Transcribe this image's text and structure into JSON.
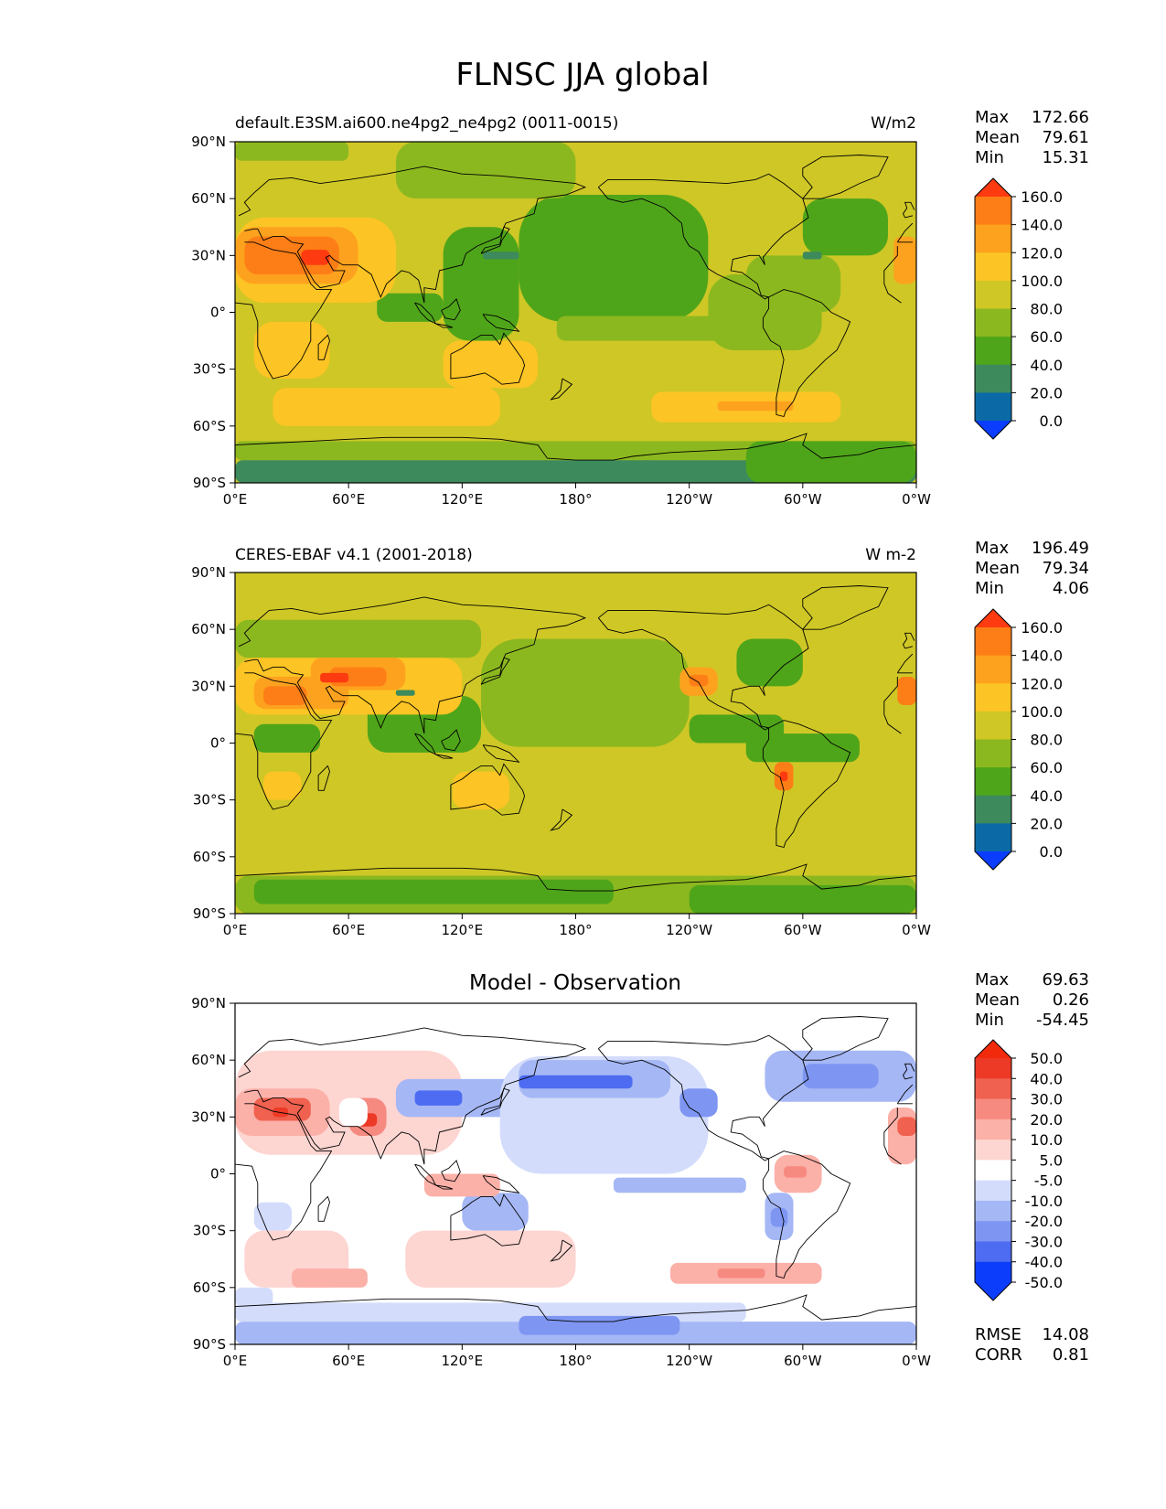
{
  "figure_title": "FLNSC JJA global",
  "x_ticks": [
    "0°E",
    "60°E",
    "120°E",
    "180°",
    "120°W",
    "60°W",
    "0°W"
  ],
  "y_ticks": [
    "90°N",
    "60°N",
    "30°N",
    "0°",
    "30°S",
    "60°S",
    "90°S"
  ],
  "colors": {
    "flux_levels": [
      "#0b3dff",
      "#0b6aa6",
      "#3d8a5c",
      "#4fa51a",
      "#8cb81f",
      "#cfc726",
      "#fcc424",
      "#fda21e",
      "#fd7e16",
      "#fd3a10"
    ],
    "diff_levels": [
      "#0c3dfa",
      "#4d6cf1",
      "#7e96f2",
      "#a5b7f5",
      "#d3dcfb",
      "#ffffff",
      "#fdd5d1",
      "#fbb0a8",
      "#f68a80",
      "#f0614f",
      "#ed3a26",
      "#f12a0c"
    ],
    "land_outline": "#000000"
  },
  "chart_data": [
    {
      "type": "heatmap",
      "title": "default.E3SM.ai600.ne4pg2_ne4pg2 (0011-0015)",
      "units": "W/m2",
      "stats": {
        "max_label": "Max",
        "max": "172.66",
        "mean_label": "Mean",
        "mean": "79.61",
        "min_label": "Min",
        "min": "15.31"
      },
      "colorbar_ticks": [
        "160.0",
        "140.0",
        "120.0",
        "100.0",
        "80.0",
        "60.0",
        "40.0",
        "20.0",
        "0.0"
      ],
      "x_range": [
        0,
        360
      ],
      "y_range": [
        -90,
        90
      ],
      "background_level": 5,
      "regions": [
        {
          "lon": [
            0,
            360
          ],
          "lat": [
            -90,
            -78
          ],
          "level": 2
        },
        {
          "lon": [
            0,
            360
          ],
          "lat": [
            -78,
            -68
          ],
          "level": 4
        },
        {
          "lon": [
            270,
            360
          ],
          "lat": [
            -90,
            -68
          ],
          "level": 3
        },
        {
          "lon": [
            150,
            250
          ],
          "lat": [
            -5,
            62
          ],
          "level": 3
        },
        {
          "lon": [
            110,
            150
          ],
          "lat": [
            -15,
            45
          ],
          "level": 3
        },
        {
          "lon": [
            300,
            345
          ],
          "lat": [
            30,
            60
          ],
          "level": 3
        },
        {
          "lon": [
            75,
            110
          ],
          "lat": [
            -5,
            10
          ],
          "level": 3
        },
        {
          "lon": [
            85,
            180
          ],
          "lat": [
            60,
            90
          ],
          "level": 4
        },
        {
          "lon": [
            0,
            60
          ],
          "lat": [
            80,
            90
          ],
          "level": 4
        },
        {
          "lon": [
            170,
            270
          ],
          "lat": [
            -15,
            -2
          ],
          "level": 4
        },
        {
          "lon": [
            250,
            310
          ],
          "lat": [
            -20,
            20
          ],
          "level": 4
        },
        {
          "lon": [
            270,
            320
          ],
          "lat": [
            0,
            30
          ],
          "level": 4
        },
        {
          "lon": [
            0,
            85
          ],
          "lat": [
            5,
            50
          ],
          "level": 6
        },
        {
          "lon": [
            10,
            50
          ],
          "lat": [
            -35,
            -5
          ],
          "level": 6
        },
        {
          "lon": [
            110,
            160
          ],
          "lat": [
            -40,
            -15
          ],
          "level": 6
        },
        {
          "lon": [
            20,
            140
          ],
          "lat": [
            -60,
            -40
          ],
          "level": 6
        },
        {
          "lon": [
            220,
            320
          ],
          "lat": [
            -58,
            -42
          ],
          "level": 6
        },
        {
          "lon": [
            0,
            65
          ],
          "lat": [
            15,
            45
          ],
          "level": 7
        },
        {
          "lon": [
            5,
            55
          ],
          "lat": [
            20,
            40
          ],
          "level": 8
        },
        {
          "lon": [
            35,
            50
          ],
          "lat": [
            25,
            33
          ],
          "level": 9
        },
        {
          "lon": [
            255,
            295
          ],
          "lat": [
            -52,
            -47
          ],
          "level": 7
        },
        {
          "lon": [
            348,
            360
          ],
          "lat": [
            15,
            40
          ],
          "level": 7
        },
        {
          "lon": [
            131,
            150
          ],
          "lat": [
            28,
            32
          ],
          "level": 2
        },
        {
          "lon": [
            300,
            310
          ],
          "lat": [
            28,
            32
          ],
          "level": 2
        }
      ]
    },
    {
      "type": "heatmap",
      "title": "CERES-EBAF v4.1 (2001-2018)",
      "units": "W m-2",
      "stats": {
        "max_label": "Max",
        "max": "196.49",
        "mean_label": "Mean",
        "mean": "79.34",
        "min_label": "Min",
        "min": "4.06"
      },
      "colorbar_ticks": [
        "160.0",
        "140.0",
        "120.0",
        "100.0",
        "80.0",
        "60.0",
        "40.0",
        "20.0",
        "0.0"
      ],
      "x_range": [
        0,
        360
      ],
      "y_range": [
        -90,
        90
      ],
      "background_level": 5,
      "regions": [
        {
          "lon": [
            0,
            360
          ],
          "lat": [
            -90,
            -70
          ],
          "level": 4
        },
        {
          "lon": [
            10,
            200
          ],
          "lat": [
            -85,
            -72
          ],
          "level": 3
        },
        {
          "lon": [
            240,
            360
          ],
          "lat": [
            -90,
            -75
          ],
          "level": 3
        },
        {
          "lon": [
            130,
            240
          ],
          "lat": [
            -2,
            55
          ],
          "level": 4
        },
        {
          "lon": [
            240,
            290
          ],
          "lat": [
            0,
            15
          ],
          "level": 3
        },
        {
          "lon": [
            70,
            130
          ],
          "lat": [
            -5,
            25
          ],
          "level": 3
        },
        {
          "lon": [
            10,
            45
          ],
          "lat": [
            -5,
            10
          ],
          "level": 3
        },
        {
          "lon": [
            270,
            330
          ],
          "lat": [
            -10,
            5
          ],
          "level": 3
        },
        {
          "lon": [
            265,
            300
          ],
          "lat": [
            30,
            55
          ],
          "level": 3
        },
        {
          "lon": [
            0,
            130
          ],
          "lat": [
            45,
            65
          ],
          "level": 4
        },
        {
          "lon": [
            0,
            120
          ],
          "lat": [
            15,
            45
          ],
          "level": 6
        },
        {
          "lon": [
            10,
            60
          ],
          "lat": [
            18,
            35
          ],
          "level": 7
        },
        {
          "lon": [
            40,
            90
          ],
          "lat": [
            28,
            45
          ],
          "level": 7
        },
        {
          "lon": [
            50,
            80
          ],
          "lat": [
            30,
            40
          ],
          "level": 8
        },
        {
          "lon": [
            45,
            60
          ],
          "lat": [
            32,
            37
          ],
          "level": 9
        },
        {
          "lon": [
            15,
            38
          ],
          "lat": [
            20,
            30
          ],
          "level": 8
        },
        {
          "lon": [
            15,
            35
          ],
          "lat": [
            -30,
            -15
          ],
          "level": 6
        },
        {
          "lon": [
            115,
            145
          ],
          "lat": [
            -35,
            -15
          ],
          "level": 6
        },
        {
          "lon": [
            235,
            255
          ],
          "lat": [
            25,
            40
          ],
          "level": 7
        },
        {
          "lon": [
            240,
            250
          ],
          "lat": [
            30,
            36
          ],
          "level": 8
        },
        {
          "lon": [
            285,
            295
          ],
          "lat": [
            -25,
            -10
          ],
          "level": 8
        },
        {
          "lon": [
            288,
            292
          ],
          "lat": [
            -20,
            -15
          ],
          "level": 9
        },
        {
          "lon": [
            350,
            360
          ],
          "lat": [
            20,
            35
          ],
          "level": 8
        },
        {
          "lon": [
            85,
            95
          ],
          "lat": [
            25,
            28
          ],
          "level": 2
        }
      ]
    },
    {
      "type": "heatmap",
      "title": "Model - Observation",
      "units": "",
      "stats": {
        "max_label": "Max",
        "max": "69.63",
        "mean_label": "Mean",
        "mean": "0.26",
        "min_label": "Min",
        "min": "-54.45"
      },
      "colorbar_ticks": [
        "50.0",
        "40.0",
        "30.0",
        "20.0",
        "10.0",
        "5.0",
        "-5.0",
        "-10.0",
        "-20.0",
        "-30.0",
        "-40.0",
        "-50.0"
      ],
      "extra_stats": {
        "rmse_label": "RMSE",
        "rmse": "14.08",
        "corr_label": "CORR",
        "corr": "0.81"
      },
      "x_range": [
        0,
        360
      ],
      "y_range": [
        -90,
        90
      ],
      "background_level": 5,
      "regions": [
        {
          "lon": [
            0,
            360
          ],
          "lat": [
            -90,
            -78
          ],
          "level": 3
        },
        {
          "lon": [
            0,
            270
          ],
          "lat": [
            -78,
            -68
          ],
          "level": 4
        },
        {
          "lon": [
            150,
            235
          ],
          "lat": [
            -85,
            -75
          ],
          "level": 2
        },
        {
          "lon": [
            0,
            120
          ],
          "lat": [
            10,
            65
          ],
          "level": 6
        },
        {
          "lon": [
            0,
            50
          ],
          "lat": [
            20,
            45
          ],
          "level": 7
        },
        {
          "lon": [
            10,
            40
          ],
          "lat": [
            28,
            40
          ],
          "level": 9
        },
        {
          "lon": [
            20,
            28
          ],
          "lat": [
            30,
            35
          ],
          "level": 10
        },
        {
          "lon": [
            60,
            80
          ],
          "lat": [
            20,
            40
          ],
          "level": 8
        },
        {
          "lon": [
            65,
            75
          ],
          "lat": [
            25,
            32
          ],
          "level": 10
        },
        {
          "lon": [
            55,
            70
          ],
          "lat": [
            25,
            40
          ],
          "level": 5
        },
        {
          "lon": [
            85,
            150
          ],
          "lat": [
            30,
            50
          ],
          "level": 3
        },
        {
          "lon": [
            95,
            120
          ],
          "lat": [
            36,
            44
          ],
          "level": 1
        },
        {
          "lon": [
            140,
            250
          ],
          "lat": [
            0,
            62
          ],
          "level": 4
        },
        {
          "lon": [
            150,
            230
          ],
          "lat": [
            40,
            60
          ],
          "level": 3
        },
        {
          "lon": [
            150,
            210
          ],
          "lat": [
            45,
            52
          ],
          "level": 1
        },
        {
          "lon": [
            235,
            255
          ],
          "lat": [
            30,
            45
          ],
          "level": 2
        },
        {
          "lon": [
            280,
            360
          ],
          "lat": [
            38,
            65
          ],
          "level": 3
        },
        {
          "lon": [
            300,
            340
          ],
          "lat": [
            45,
            58
          ],
          "level": 2
        },
        {
          "lon": [
            285,
            310
          ],
          "lat": [
            -10,
            10
          ],
          "level": 7
        },
        {
          "lon": [
            290,
            302
          ],
          "lat": [
            -2,
            4
          ],
          "level": 8
        },
        {
          "lon": [
            280,
            295
          ],
          "lat": [
            -35,
            -10
          ],
          "level": 3
        },
        {
          "lon": [
            283,
            292
          ],
          "lat": [
            -28,
            -18
          ],
          "level": 2
        },
        {
          "lon": [
            120,
            155
          ],
          "lat": [
            -30,
            -10
          ],
          "level": 3
        },
        {
          "lon": [
            10,
            30
          ],
          "lat": [
            -30,
            -15
          ],
          "level": 4
        },
        {
          "lon": [
            5,
            60
          ],
          "lat": [
            -60,
            -30
          ],
          "level": 6
        },
        {
          "lon": [
            90,
            180
          ],
          "lat": [
            -60,
            -30
          ],
          "level": 6
        },
        {
          "lon": [
            30,
            70
          ],
          "lat": [
            -60,
            -50
          ],
          "level": 7
        },
        {
          "lon": [
            230,
            310
          ],
          "lat": [
            -58,
            -47
          ],
          "level": 7
        },
        {
          "lon": [
            255,
            280
          ],
          "lat": [
            -55,
            -50
          ],
          "level": 8
        },
        {
          "lon": [
            100,
            140
          ],
          "lat": [
            -12,
            0
          ],
          "level": 7
        },
        {
          "lon": [
            345,
            360
          ],
          "lat": [
            5,
            35
          ],
          "level": 7
        },
        {
          "lon": [
            350,
            360
          ],
          "lat": [
            20,
            30
          ],
          "level": 9
        },
        {
          "lon": [
            200,
            270
          ],
          "lat": [
            -10,
            -2
          ],
          "level": 3
        },
        {
          "lon": [
            0,
            20
          ],
          "lat": [
            -70,
            -60
          ],
          "level": 4
        }
      ]
    }
  ]
}
